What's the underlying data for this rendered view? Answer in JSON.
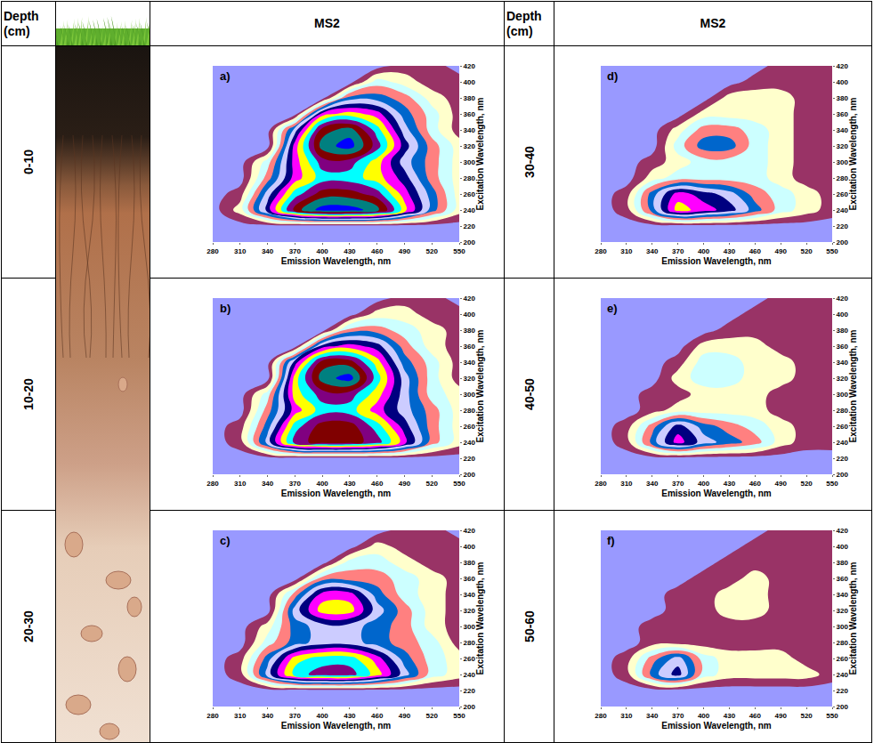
{
  "table": {
    "headers": [
      "Depth (cm)",
      "MS2",
      "Depth (cm)",
      "MS2"
    ]
  },
  "chart_data": [
    {
      "type": "contour",
      "panel": "a)",
      "depth": "0-10",
      "x_label": "Emission Wavelength, nm",
      "y_label": "Excitation Wavelength, nm",
      "x": [
        280,
        310,
        340,
        370,
        400,
        430,
        460,
        490,
        520,
        550
      ],
      "y": [
        200,
        220,
        240,
        260,
        280,
        300,
        320,
        340,
        360,
        380,
        400,
        420
      ],
      "z": [
        [
          0,
          0,
          0,
          0,
          0,
          0,
          0,
          0,
          0,
          0
        ],
        [
          0,
          0,
          0,
          0,
          0,
          0,
          0,
          0,
          0,
          0
        ],
        [
          0,
          2,
          7,
          12,
          14,
          14,
          13,
          9,
          5,
          2
        ],
        [
          0,
          1,
          6,
          10,
          12,
          12,
          11,
          8,
          5,
          2
        ],
        [
          0,
          0,
          4,
          8,
          10,
          10,
          9,
          7,
          4,
          2
        ],
        [
          0,
          0,
          3,
          8,
          11,
          11,
          9,
          6,
          4,
          2
        ],
        [
          0,
          0,
          0,
          8,
          13,
          14,
          11,
          7,
          4,
          2
        ],
        [
          0,
          0,
          0,
          6,
          12,
          13,
          10,
          6,
          3,
          1
        ],
        [
          0,
          0,
          0,
          0,
          8,
          9,
          8,
          5,
          3,
          1
        ],
        [
          0,
          0,
          0,
          0,
          0,
          5,
          5,
          4,
          2,
          1
        ],
        [
          0,
          0,
          0,
          0,
          0,
          0,
          3,
          2,
          1,
          1
        ],
        [
          0,
          0,
          0,
          0,
          0,
          0,
          0,
          1,
          1,
          0
        ]
      ],
      "xlim": [
        280,
        550
      ],
      "ylim": [
        200,
        420
      ],
      "xticks": [
        280,
        310,
        340,
        370,
        400,
        430,
        460,
        490,
        520,
        550
      ],
      "yticks": [
        200,
        220,
        240,
        260,
        280,
        300,
        320,
        340,
        360,
        380,
        400,
        420
      ],
      "colors": [
        "#9999FF",
        "#993366",
        "#FFFFCC",
        "#CCFFFF",
        "#FF8080",
        "#0066CC",
        "#CCCCFF",
        "#000080",
        "#FF00FF",
        "#FFFF00",
        "#00FFFF",
        "#800080",
        "#800000",
        "#008080",
        "#0000FF",
        "#FFCCFF"
      ]
    },
    {
      "type": "contour",
      "panel": "b)",
      "depth": "10-20",
      "x_label": "Emission Wavelength, nm",
      "y_label": "Excitation Wavelength, nm",
      "x": [
        280,
        310,
        340,
        370,
        400,
        430,
        460,
        490,
        520,
        550
      ],
      "y": [
        200,
        220,
        240,
        260,
        280,
        300,
        320,
        340,
        360,
        380,
        400,
        420
      ],
      "z": [
        [
          0,
          0,
          0,
          0,
          0,
          0,
          0,
          0,
          0,
          0
        ],
        [
          0,
          0,
          0,
          0,
          0,
          0,
          0,
          0,
          0,
          0
        ],
        [
          0,
          1,
          6,
          11,
          12,
          12,
          11,
          8,
          4,
          2
        ],
        [
          0,
          1,
          5,
          10,
          12,
          12,
          10,
          7,
          4,
          2
        ],
        [
          0,
          0,
          4,
          8,
          10,
          10,
          8,
          6,
          4,
          2
        ],
        [
          0,
          0,
          3,
          9,
          11,
          11,
          9,
          6,
          3,
          2
        ],
        [
          0,
          0,
          0,
          9,
          13,
          14,
          10,
          6,
          3,
          1
        ],
        [
          0,
          0,
          0,
          7,
          12,
          12,
          9,
          5,
          3,
          1
        ],
        [
          0,
          0,
          0,
          0,
          7,
          8,
          7,
          4,
          2,
          1
        ],
        [
          0,
          0,
          0,
          0,
          0,
          4,
          4,
          3,
          2,
          1
        ],
        [
          0,
          0,
          0,
          0,
          0,
          0,
          2,
          2,
          1,
          1
        ],
        [
          0,
          0,
          0,
          0,
          0,
          0,
          0,
          1,
          1,
          0
        ]
      ],
      "xlim": [
        280,
        550
      ],
      "ylim": [
        200,
        420
      ],
      "xticks": [
        280,
        310,
        340,
        370,
        400,
        430,
        460,
        490,
        520,
        550
      ],
      "yticks": [
        200,
        220,
        240,
        260,
        280,
        300,
        320,
        340,
        360,
        380,
        400,
        420
      ],
      "colors": [
        "#9999FF",
        "#993366",
        "#FFFFCC",
        "#CCFFFF",
        "#FF8080",
        "#0066CC",
        "#CCCCFF",
        "#000080",
        "#FF00FF",
        "#FFFF00",
        "#00FFFF",
        "#800080",
        "#800000",
        "#008080",
        "#0000FF",
        "#FFCCFF"
      ]
    },
    {
      "type": "contour",
      "panel": "c)",
      "depth": "20-30",
      "x_label": "Emission Wavelength, nm",
      "y_label": "Excitation Wavelength, nm",
      "x": [
        280,
        310,
        340,
        370,
        400,
        430,
        460,
        490,
        520,
        550
      ],
      "y": [
        200,
        220,
        240,
        260,
        280,
        300,
        320,
        340,
        360,
        380,
        400,
        420
      ],
      "z": [
        [
          0,
          0,
          0,
          0,
          0,
          0,
          0,
          0,
          0,
          0
        ],
        [
          0,
          0,
          0,
          0,
          0,
          0,
          0,
          0,
          0,
          0
        ],
        [
          0,
          1,
          6,
          10,
          11,
          11,
          9,
          6,
          3,
          2
        ],
        [
          0,
          1,
          5,
          9,
          10,
          10,
          8,
          5,
          3,
          2
        ],
        [
          0,
          0,
          3,
          5,
          6,
          6,
          5,
          4,
          3,
          1
        ],
        [
          0,
          0,
          2,
          5,
          6,
          6,
          5,
          4,
          2,
          1
        ],
        [
          0,
          0,
          0,
          6,
          9,
          9,
          6,
          4,
          2,
          1
        ],
        [
          0,
          0,
          0,
          4,
          8,
          8,
          5,
          3,
          2,
          1
        ],
        [
          0,
          0,
          0,
          0,
          4,
          4,
          4,
          3,
          2,
          1
        ],
        [
          0,
          0,
          0,
          0,
          0,
          3,
          3,
          2,
          1,
          1
        ],
        [
          0,
          0,
          0,
          0,
          0,
          0,
          2,
          1,
          1,
          1
        ],
        [
          0,
          0,
          0,
          0,
          0,
          0,
          0,
          1,
          1,
          0
        ]
      ],
      "xlim": [
        280,
        550
      ],
      "ylim": [
        200,
        420
      ],
      "xticks": [
        280,
        310,
        340,
        370,
        400,
        430,
        460,
        490,
        520,
        550
      ],
      "yticks": [
        200,
        220,
        240,
        260,
        280,
        300,
        320,
        340,
        360,
        380,
        400,
        420
      ],
      "colors": [
        "#9999FF",
        "#993366",
        "#FFFFCC",
        "#CCFFFF",
        "#FF8080",
        "#0066CC",
        "#CCCCFF",
        "#000080",
        "#FF00FF",
        "#FFFF00",
        "#00FFFF",
        "#800080",
        "#800000",
        "#008080",
        "#0000FF",
        "#FFCCFF"
      ]
    },
    {
      "type": "contour",
      "panel": "d)",
      "depth": "30-40",
      "x_label": "Emission Wavelength, nm",
      "y_label": "Excitation Wavelength, nm",
      "x": [
        280,
        310,
        340,
        370,
        400,
        430,
        460,
        490,
        520,
        550
      ],
      "y": [
        200,
        220,
        240,
        260,
        280,
        300,
        320,
        340,
        360,
        380,
        400,
        420
      ],
      "z": [
        [
          0,
          0,
          0,
          0,
          0,
          0,
          0,
          0,
          0,
          0
        ],
        [
          0,
          0,
          0,
          0,
          0,
          0,
          0,
          0,
          0,
          0
        ],
        [
          0,
          1,
          5,
          9,
          8,
          7,
          5,
          3,
          2,
          1
        ],
        [
          0,
          1,
          5,
          8,
          7,
          6,
          4,
          3,
          2,
          1
        ],
        [
          0,
          0,
          2,
          3,
          3,
          3,
          3,
          2,
          1,
          1
        ],
        [
          0,
          0,
          1,
          2,
          3,
          3,
          3,
          2,
          1,
          1
        ],
        [
          0,
          0,
          0,
          3,
          5,
          5,
          3,
          2,
          1,
          1
        ],
        [
          0,
          0,
          0,
          2,
          4,
          4,
          3,
          2,
          1,
          1
        ],
        [
          0,
          0,
          0,
          0,
          2,
          2,
          2,
          2,
          1,
          1
        ],
        [
          0,
          0,
          0,
          0,
          0,
          2,
          2,
          2,
          1,
          1
        ],
        [
          0,
          0,
          0,
          0,
          0,
          0,
          1,
          1,
          1,
          1
        ],
        [
          0,
          0,
          0,
          0,
          0,
          0,
          0,
          1,
          1,
          1
        ]
      ],
      "xlim": [
        280,
        550
      ],
      "ylim": [
        200,
        420
      ],
      "xticks": [
        280,
        310,
        340,
        370,
        400,
        430,
        460,
        490,
        520,
        550
      ],
      "yticks": [
        200,
        220,
        240,
        260,
        280,
        300,
        320,
        340,
        360,
        380,
        400,
        420
      ],
      "colors": [
        "#9999FF",
        "#993366",
        "#FFFFCC",
        "#CCFFFF",
        "#FF8080",
        "#0066CC",
        "#CCCCFF",
        "#000080",
        "#FF00FF",
        "#FFFF00",
        "#00FFFF",
        "#800080",
        "#800000",
        "#008080",
        "#0000FF",
        "#FFCCFF"
      ]
    },
    {
      "type": "contour",
      "panel": "e)",
      "depth": "40-50",
      "x_label": "Emission Wavelength, nm",
      "y_label": "Excitation Wavelength, nm",
      "x": [
        280,
        310,
        340,
        370,
        400,
        430,
        460,
        490,
        520,
        550
      ],
      "y": [
        200,
        220,
        240,
        260,
        280,
        300,
        320,
        340,
        360,
        380,
        400,
        420
      ],
      "z": [
        [
          0,
          0,
          0,
          0,
          0,
          0,
          0,
          0,
          0,
          0
        ],
        [
          0,
          0,
          0,
          0,
          0,
          0,
          0,
          0,
          0,
          0
        ],
        [
          0,
          1,
          5,
          8,
          6,
          5,
          4,
          2,
          1,
          1
        ],
        [
          0,
          1,
          4,
          7,
          5,
          4,
          3,
          2,
          1,
          1
        ],
        [
          0,
          0,
          1,
          2,
          2,
          2,
          2,
          1,
          1,
          1
        ],
        [
          0,
          0,
          1,
          1,
          2,
          2,
          2,
          1,
          1,
          1
        ],
        [
          0,
          0,
          0,
          2,
          3,
          3,
          2,
          2,
          1,
          1
        ],
        [
          0,
          0,
          0,
          1,
          3,
          3,
          2,
          2,
          1,
          1
        ],
        [
          0,
          0,
          0,
          0,
          2,
          2,
          2,
          1,
          1,
          1
        ],
        [
          0,
          0,
          0,
          0,
          0,
          1,
          1,
          1,
          1,
          1
        ],
        [
          0,
          0,
          0,
          0,
          0,
          0,
          1,
          1,
          1,
          1
        ],
        [
          0,
          0,
          0,
          0,
          0,
          0,
          0,
          1,
          1,
          1
        ]
      ],
      "xlim": [
        280,
        550
      ],
      "ylim": [
        200,
        420
      ],
      "xticks": [
        280,
        310,
        340,
        370,
        400,
        430,
        460,
        490,
        520,
        550
      ],
      "yticks": [
        200,
        220,
        240,
        260,
        280,
        300,
        320,
        340,
        360,
        380,
        400,
        420
      ],
      "colors": [
        "#9999FF",
        "#993366",
        "#FFFFCC",
        "#CCFFFF",
        "#FF8080",
        "#0066CC",
        "#CCCCFF",
        "#000080",
        "#FF00FF",
        "#FFFF00",
        "#00FFFF",
        "#800080",
        "#800000",
        "#008080",
        "#0000FF",
        "#FFCCFF"
      ]
    },
    {
      "type": "contour",
      "panel": "f)",
      "depth": "50-60",
      "x_label": "Emission Wavelength, nm",
      "y_label": "Excitation Wavelength, nm",
      "x": [
        280,
        310,
        340,
        370,
        400,
        430,
        460,
        490,
        520,
        550
      ],
      "y": [
        200,
        220,
        240,
        260,
        280,
        300,
        320,
        340,
        360,
        380,
        400,
        420
      ],
      "z": [
        [
          0,
          0,
          0,
          0,
          0,
          0,
          0,
          0,
          0,
          0
        ],
        [
          0,
          0,
          0,
          0,
          0,
          0,
          0,
          0,
          0,
          0
        ],
        [
          0,
          1,
          5,
          7,
          3,
          2,
          2,
          2,
          2,
          1
        ],
        [
          0,
          1,
          4,
          6,
          3,
          2,
          2,
          2,
          1,
          1
        ],
        [
          0,
          0,
          1,
          1,
          1,
          1,
          1,
          1,
          1,
          1
        ],
        [
          0,
          0,
          1,
          1,
          1,
          1,
          1,
          1,
          1,
          1
        ],
        [
          0,
          0,
          0,
          1,
          1,
          2,
          2,
          1,
          1,
          1
        ],
        [
          0,
          0,
          0,
          1,
          1,
          2,
          2,
          1,
          1,
          1
        ],
        [
          0,
          0,
          0,
          0,
          1,
          1,
          2,
          1,
          1,
          1
        ],
        [
          0,
          0,
          0,
          0,
          0,
          1,
          1,
          1,
          1,
          1
        ],
        [
          0,
          0,
          0,
          0,
          0,
          0,
          1,
          1,
          1,
          1
        ],
        [
          0,
          0,
          0,
          0,
          0,
          0,
          0,
          1,
          1,
          1
        ]
      ],
      "xlim": [
        280,
        550
      ],
      "ylim": [
        200,
        420
      ],
      "xticks": [
        280,
        310,
        340,
        370,
        400,
        430,
        460,
        490,
        520,
        550
      ],
      "yticks": [
        200,
        220,
        240,
        260,
        280,
        300,
        320,
        340,
        360,
        380,
        400,
        420
      ],
      "colors": [
        "#9999FF",
        "#993366",
        "#FFFFCC",
        "#CCFFFF",
        "#FF8080",
        "#0066CC",
        "#CCCCFF",
        "#000080",
        "#FF00FF",
        "#FFFF00",
        "#00FFFF",
        "#800080",
        "#800000",
        "#008080",
        "#0000FF",
        "#FFCCFF"
      ]
    }
  ]
}
